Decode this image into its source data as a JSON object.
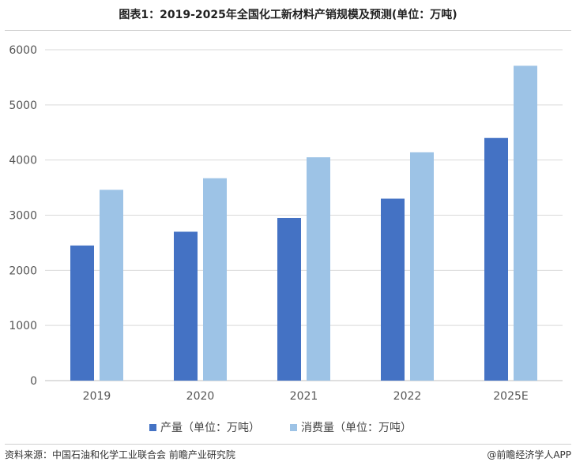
{
  "title": "图表1：2019-2025年全国化工新材料产销规模及预测(单位：万吨)",
  "source": "资料来源：中国石油和化学工业联合会 前瞻产业研究院",
  "brand": "@前瞻经济学人APP",
  "colors": {
    "series1": "#4472C4",
    "series2": "#9DC3E6",
    "grid": "#d9d9d9"
  },
  "chart_data": {
    "type": "bar",
    "categories": [
      "2019",
      "2020",
      "2021",
      "2022",
      "2025E"
    ],
    "series": [
      {
        "name": "产量（单位：万吨）",
        "values": [
          2450,
          2700,
          2950,
          3300,
          4400
        ]
      },
      {
        "name": "消费量（单位：万吨）",
        "values": [
          3460,
          3670,
          4050,
          4140,
          5710
        ]
      }
    ],
    "ylim": [
      0,
      6000
    ],
    "yticks": [
      "0",
      "1000",
      "2000",
      "3000",
      "4000",
      "5000",
      "6000"
    ],
    "grid": true,
    "legend": "bottom"
  }
}
